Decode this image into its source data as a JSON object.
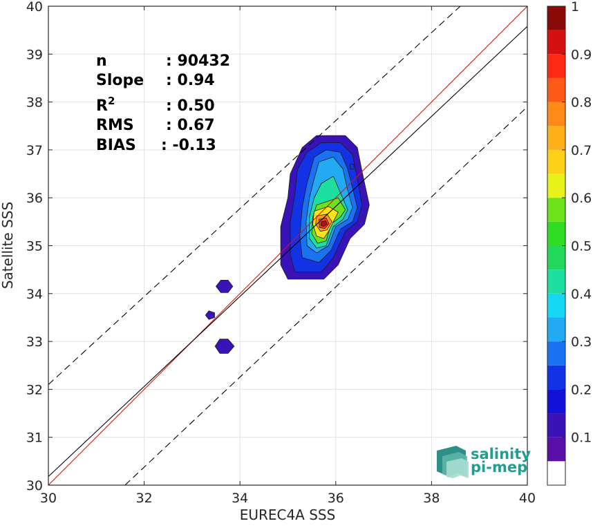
{
  "chart_data": {
    "type": "heatmap",
    "subtype": "filled-contour density scatter",
    "xlabel": "EUREC4A SSS",
    "ylabel": "Satellite SSS",
    "xlim": [
      30,
      40
    ],
    "ylim": [
      30,
      40
    ],
    "xticks": [
      30,
      32,
      34,
      36,
      38,
      40
    ],
    "yticks": [
      30,
      31,
      32,
      33,
      34,
      35,
      36,
      37,
      38,
      39,
      40
    ],
    "grid": true,
    "stats": [
      {
        "label": "n",
        "value": ": 90432"
      },
      {
        "label": "Slope",
        "value": ": 0.94"
      },
      {
        "label": "R",
        "sup": "2",
        "value": ": 0.50"
      },
      {
        "label": "RMS",
        "value": ": 0.67"
      },
      {
        "label": "BIAS",
        "value": ": -0.13"
      }
    ],
    "lines": [
      {
        "name": "1:1 line",
        "color": "#ff0000",
        "style": "solid",
        "points": [
          [
            30,
            30
          ],
          [
            40,
            40
          ]
        ]
      },
      {
        "name": "regression fit",
        "color": "#000000",
        "style": "solid",
        "points": [
          [
            30,
            30.18
          ],
          [
            40,
            39.58
          ]
        ]
      },
      {
        "name": "upper bound",
        "color": "#000000",
        "style": "dashed",
        "points": [
          [
            30,
            32.1
          ],
          [
            38.6,
            40
          ]
        ]
      },
      {
        "name": "lower bound",
        "color": "#000000",
        "style": "dashed",
        "points": [
          [
            31.6,
            30
          ],
          [
            40,
            37.9
          ]
        ]
      }
    ],
    "contours": [
      {
        "level": 0.05,
        "color": "#3a13b8",
        "points": [
          [
            35.3,
            37.05
          ],
          [
            35.6,
            37.3
          ],
          [
            36.2,
            37.3
          ],
          [
            36.45,
            37.05
          ],
          [
            36.55,
            36.55
          ],
          [
            36.7,
            35.85
          ],
          [
            36.6,
            35.45
          ],
          [
            36.3,
            35.15
          ],
          [
            36.05,
            34.6
          ],
          [
            35.75,
            34.3
          ],
          [
            35.0,
            34.3
          ],
          [
            34.85,
            34.6
          ],
          [
            34.85,
            35.4
          ],
          [
            35.0,
            36.0
          ],
          [
            35.05,
            36.5
          ]
        ]
      },
      {
        "level": 0.15,
        "color": "#1232e6",
        "points": [
          [
            35.4,
            36.95
          ],
          [
            35.7,
            37.15
          ],
          [
            36.1,
            37.15
          ],
          [
            36.35,
            36.9
          ],
          [
            36.45,
            36.4
          ],
          [
            36.55,
            35.85
          ],
          [
            36.45,
            35.5
          ],
          [
            36.2,
            35.3
          ],
          [
            35.95,
            34.75
          ],
          [
            35.7,
            34.45
          ],
          [
            35.15,
            34.45
          ],
          [
            35.05,
            34.8
          ],
          [
            35.05,
            35.5
          ],
          [
            35.15,
            36.1
          ],
          [
            35.2,
            36.6
          ]
        ]
      },
      {
        "level": 0.25,
        "color": "#1a72f0",
        "points": [
          [
            35.55,
            36.85
          ],
          [
            35.8,
            37.0
          ],
          [
            36.1,
            36.95
          ],
          [
            36.25,
            36.6
          ],
          [
            36.35,
            36.2
          ],
          [
            36.45,
            35.8
          ],
          [
            36.35,
            35.5
          ],
          [
            36.1,
            35.35
          ],
          [
            35.9,
            34.9
          ],
          [
            35.65,
            34.65
          ],
          [
            35.3,
            34.75
          ],
          [
            35.25,
            35.2
          ],
          [
            35.3,
            35.8
          ],
          [
            35.4,
            36.3
          ]
        ]
      },
      {
        "level": 0.35,
        "color": "#22aaf2",
        "points": [
          [
            35.65,
            36.75
          ],
          [
            35.95,
            36.85
          ],
          [
            36.15,
            36.6
          ],
          [
            36.25,
            36.15
          ],
          [
            36.35,
            35.8
          ],
          [
            36.25,
            35.55
          ],
          [
            36.0,
            35.4
          ],
          [
            35.85,
            35.0
          ],
          [
            35.6,
            34.85
          ],
          [
            35.4,
            35.0
          ],
          [
            35.38,
            35.5
          ],
          [
            35.45,
            36.0
          ],
          [
            35.55,
            36.4
          ]
        ]
      },
      {
        "level": 0.45,
        "color": "#1de0a0",
        "points": [
          [
            35.7,
            36.3
          ],
          [
            35.95,
            36.45
          ],
          [
            36.1,
            36.1
          ],
          [
            36.25,
            35.75
          ],
          [
            36.15,
            35.55
          ],
          [
            35.95,
            35.4
          ],
          [
            35.8,
            35.0
          ],
          [
            35.6,
            34.95
          ],
          [
            35.45,
            35.15
          ],
          [
            35.45,
            35.6
          ],
          [
            35.55,
            36.0
          ]
        ]
      },
      {
        "level": 0.55,
        "color": "#6de21a",
        "points": [
          [
            35.75,
            35.9
          ],
          [
            36.05,
            36.0
          ],
          [
            36.2,
            35.75
          ],
          [
            36.1,
            35.6
          ],
          [
            35.9,
            35.45
          ],
          [
            35.8,
            35.1
          ],
          [
            35.62,
            35.05
          ],
          [
            35.5,
            35.25
          ],
          [
            35.52,
            35.6
          ],
          [
            35.6,
            35.85
          ]
        ]
      },
      {
        "level": 0.65,
        "color": "#ffe31a",
        "points": [
          [
            35.55,
            35.72
          ],
          [
            35.85,
            35.82
          ],
          [
            36.05,
            35.7
          ],
          [
            35.95,
            35.5
          ],
          [
            35.85,
            35.3
          ],
          [
            35.75,
            35.15
          ],
          [
            35.6,
            35.2
          ],
          [
            35.52,
            35.45
          ]
        ]
      },
      {
        "level": 0.75,
        "color": "#ff9a18",
        "points": [
          [
            35.6,
            35.62
          ],
          [
            35.82,
            35.66
          ],
          [
            35.92,
            35.5
          ],
          [
            35.82,
            35.33
          ],
          [
            35.68,
            35.3
          ],
          [
            35.58,
            35.45
          ]
        ]
      },
      {
        "level": 0.85,
        "color": "#ff3d18",
        "points": [
          [
            35.65,
            35.55
          ],
          [
            35.8,
            35.58
          ],
          [
            35.86,
            35.46
          ],
          [
            35.77,
            35.36
          ],
          [
            35.66,
            35.38
          ]
        ]
      },
      {
        "level": 0.95,
        "color": "#b31212",
        "points": [
          [
            35.7,
            35.5
          ],
          [
            35.79,
            35.52
          ],
          [
            35.82,
            35.45
          ],
          [
            35.75,
            35.4
          ],
          [
            35.69,
            35.42
          ]
        ]
      },
      {
        "level": 0.15,
        "color": "#1232e6",
        "points": [
          [
            36.3,
            36.7
          ],
          [
            36.38,
            36.7
          ],
          [
            36.38,
            36.6
          ],
          [
            36.3,
            36.6
          ]
        ]
      },
      {
        "level": 0.05,
        "color": "#3a13b8",
        "points": [
          [
            33.5,
            34.15
          ],
          [
            33.6,
            34.28
          ],
          [
            33.75,
            34.28
          ],
          [
            33.85,
            34.15
          ],
          [
            33.75,
            34.02
          ],
          [
            33.6,
            34.02
          ]
        ]
      },
      {
        "level": 0.05,
        "color": "#3a13b8",
        "points": [
          [
            33.28,
            33.55
          ],
          [
            33.35,
            33.64
          ],
          [
            33.47,
            33.6
          ],
          [
            33.47,
            33.5
          ],
          [
            33.35,
            33.46
          ]
        ]
      },
      {
        "level": 0.05,
        "color": "#3a13b8",
        "points": [
          [
            33.48,
            32.9
          ],
          [
            33.58,
            33.05
          ],
          [
            33.75,
            33.05
          ],
          [
            33.88,
            32.9
          ],
          [
            33.75,
            32.75
          ],
          [
            33.58,
            32.75
          ]
        ]
      }
    ],
    "colorbar": {
      "ticks": [
        0.1,
        0.2,
        0.3,
        0.4,
        0.5,
        0.6,
        0.7,
        0.8,
        0.9,
        1
      ],
      "tick_labels": [
        "0.1",
        "0.2",
        "0.3",
        "0.4",
        "0.5",
        "0.6",
        "0.7",
        "0.8",
        "0.9",
        "1"
      ],
      "bands": [
        {
          "from": 0.0,
          "to": 0.05,
          "color": "#ffffff"
        },
        {
          "from": 0.05,
          "to": 0.1,
          "color": "#5a10a8"
        },
        {
          "from": 0.1,
          "to": 0.15,
          "color": "#3a13b8"
        },
        {
          "from": 0.15,
          "to": 0.2,
          "color": "#1212d8"
        },
        {
          "from": 0.2,
          "to": 0.25,
          "color": "#1232e6"
        },
        {
          "from": 0.25,
          "to": 0.3,
          "color": "#1a72f0"
        },
        {
          "from": 0.3,
          "to": 0.35,
          "color": "#22aaf2"
        },
        {
          "from": 0.35,
          "to": 0.4,
          "color": "#16d8f5"
        },
        {
          "from": 0.4,
          "to": 0.45,
          "color": "#1de0a0"
        },
        {
          "from": 0.45,
          "to": 0.5,
          "color": "#22d85a"
        },
        {
          "from": 0.5,
          "to": 0.55,
          "color": "#30dc24"
        },
        {
          "from": 0.55,
          "to": 0.6,
          "color": "#6de21a"
        },
        {
          "from": 0.6,
          "to": 0.65,
          "color": "#e8f21a"
        },
        {
          "from": 0.65,
          "to": 0.7,
          "color": "#ffd018"
        },
        {
          "from": 0.7,
          "to": 0.75,
          "color": "#ffb018"
        },
        {
          "from": 0.75,
          "to": 0.8,
          "color": "#ff8a18"
        },
        {
          "from": 0.8,
          "to": 0.85,
          "color": "#ff5a18"
        },
        {
          "from": 0.85,
          "to": 0.9,
          "color": "#ff2a14"
        },
        {
          "from": 0.9,
          "to": 0.95,
          "color": "#d51010"
        },
        {
          "from": 0.95,
          "to": 1.0,
          "color": "#8a0a0a"
        }
      ]
    }
  },
  "logo": {
    "line1": "salinity",
    "line2": "pi-mep"
  }
}
